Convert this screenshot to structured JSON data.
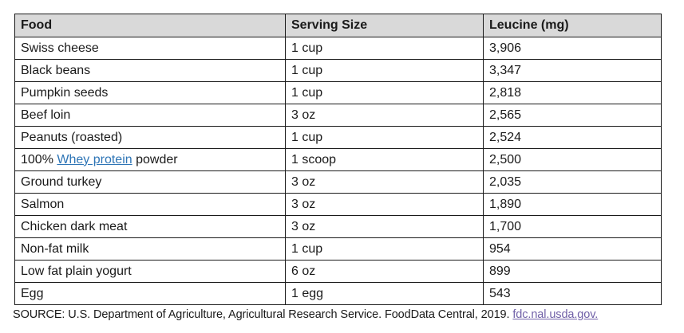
{
  "colors": {
    "header_bg": "#d9d9d9",
    "border": "#1a1a1a",
    "text": "#1a1a1a",
    "link_blue": "#2e75b6",
    "link_visited": "#7161a8"
  },
  "table": {
    "headers": [
      "Food",
      "Serving Size",
      "Leucine (mg)"
    ],
    "rows": [
      {
        "food": [
          {
            "text": "Swiss cheese"
          }
        ],
        "serving": "1 cup",
        "leucine": "3,906"
      },
      {
        "food": [
          {
            "text": "Black beans"
          }
        ],
        "serving": "1 cup",
        "leucine": "3,347"
      },
      {
        "food": [
          {
            "text": "Pumpkin seeds"
          }
        ],
        "serving": "1 cup",
        "leucine": "2,818"
      },
      {
        "food": [
          {
            "text": "Beef loin"
          }
        ],
        "serving": "3 oz",
        "leucine": "2,565"
      },
      {
        "food": [
          {
            "text": "Peanuts (roasted)"
          }
        ],
        "serving": "1 cup",
        "leucine": "2,524"
      },
      {
        "food": [
          {
            "text": "100% "
          },
          {
            "text": "Whey protein",
            "link": true,
            "name": "whey-protein-link"
          },
          {
            "text": " powder"
          }
        ],
        "serving": "1 scoop",
        "leucine": "2,500"
      },
      {
        "food": [
          {
            "text": "Ground turkey"
          }
        ],
        "serving": "3 oz",
        "leucine": "2,035"
      },
      {
        "food": [
          {
            "text": "Salmon"
          }
        ],
        "serving": "3 oz",
        "leucine": "1,890"
      },
      {
        "food": [
          {
            "text": "Chicken dark meat"
          }
        ],
        "serving": "3 oz",
        "leucine": "1,700"
      },
      {
        "food": [
          {
            "text": "Non-fat milk"
          }
        ],
        "serving": "1 cup",
        "leucine": "954"
      },
      {
        "food": [
          {
            "text": "Low fat plain yogurt"
          }
        ],
        "serving": "6 oz",
        "leucine": "899"
      },
      {
        "food": [
          {
            "text": "Egg"
          }
        ],
        "serving": "1 egg",
        "leucine": "543"
      }
    ]
  },
  "footer": {
    "text": "SOURCE: U.S. Department of Agriculture, Agricultural Research Service. FoodData Central, 2019. ",
    "link": "fdc.nal.usda.gov."
  }
}
